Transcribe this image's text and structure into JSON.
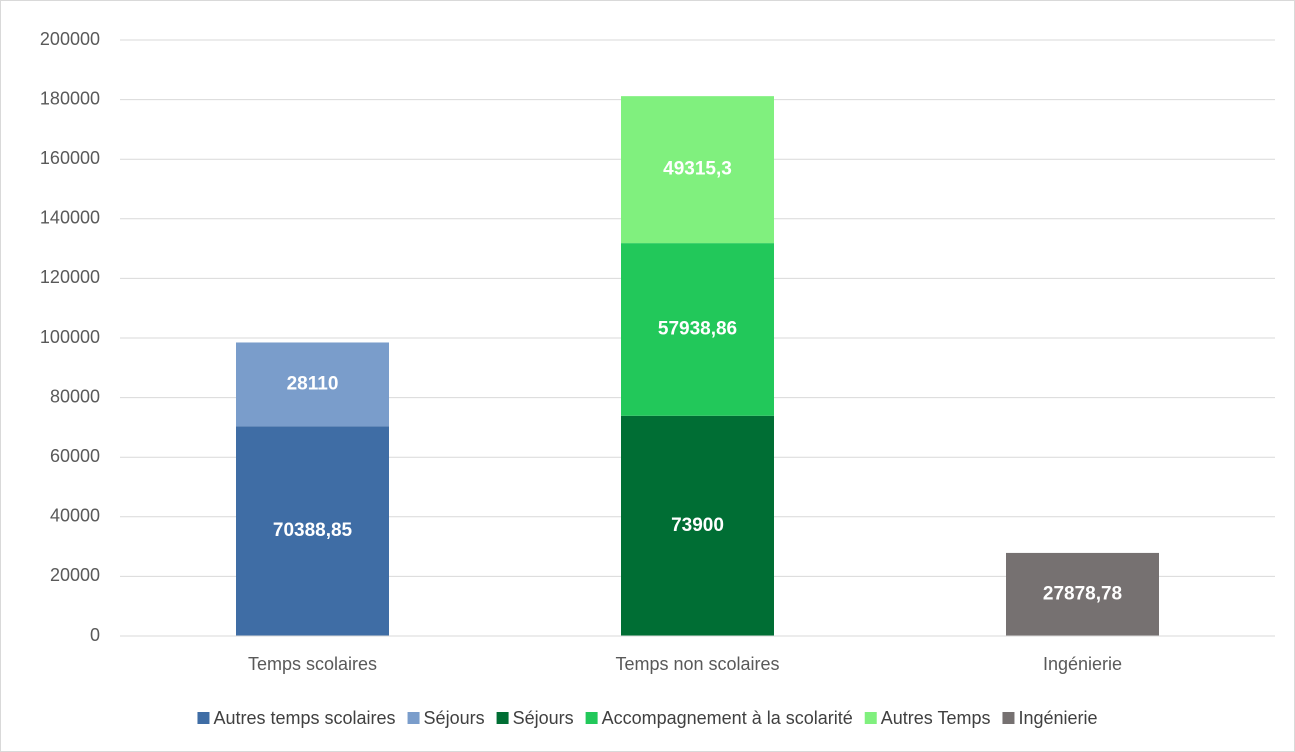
{
  "chart_data": {
    "type": "stacked_bar",
    "categories": [
      "Temps scolaires",
      "Temps non scolaires",
      "Ingénierie"
    ],
    "series": [
      {
        "name": "Autres temps scolaires",
        "color": "#3f6da5",
        "values": [
          70388.85,
          null,
          null
        ],
        "value_labels": [
          "70388,85",
          null,
          null
        ]
      },
      {
        "name": "Séjours",
        "color": "#7a9dcb",
        "values": [
          28110,
          null,
          null
        ]
      },
      {
        "name": "Séjours",
        "color": "#006e34",
        "values": [
          null,
          73900,
          null
        ]
      },
      {
        "name": "Accompagnement à la scolarité",
        "color": "#22c85a",
        "values": [
          null,
          57938.86,
          null
        ],
        "value_labels": [
          null,
          "57938,86",
          null
        ]
      },
      {
        "name": "Autres Temps",
        "color": "#80f07e",
        "values": [
          null,
          null,
          null
        ],
        "values_placeholder": null
      },
      {
        "name": "Ingénierie",
        "color": "#767171",
        "values": [
          null,
          null,
          27878.78
        ],
        "value_labels": [
          null,
          null,
          "27878,78"
        ]
      }
    ],
    "ylim": [
      0,
      200000
    ],
    "yticks": [
      0,
      20000,
      40000,
      60000,
      80000,
      100000,
      120000,
      140000,
      160000,
      180000,
      200000
    ],
    "grid": true,
    "legend": "bottom"
  }
}
